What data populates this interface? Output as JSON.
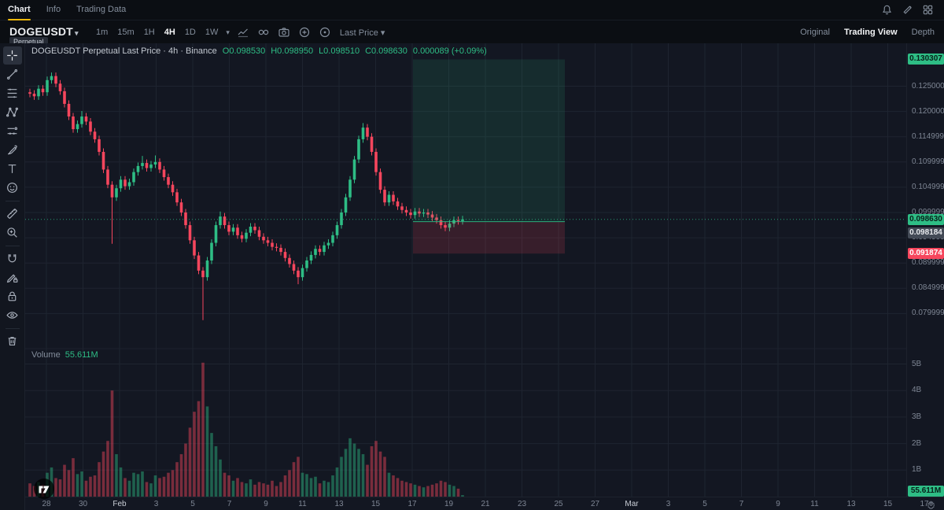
{
  "topbar": {
    "tabs": [
      {
        "label": "Chart",
        "active": true
      },
      {
        "label": "Info",
        "active": false
      },
      {
        "label": "Trading Data",
        "active": false
      }
    ],
    "icons": [
      "bell-icon",
      "marker-icon",
      "grid-icon"
    ]
  },
  "toolbar": {
    "symbol": "DOGEUSDT",
    "symbol_caret": "▾",
    "contract_type": "Perpetual",
    "intervals": [
      "1m",
      "15m",
      "1H",
      "4H",
      "1D",
      "1W"
    ],
    "active_interval": "4H",
    "interval_more_caret": "▾",
    "icons": [
      "chart-style-icon",
      "indicators-icon",
      "camera-icon",
      "add-alert-icon",
      "target-icon"
    ],
    "price_source": "Last Price",
    "price_source_caret": "▾",
    "view_tabs": [
      {
        "label": "Original",
        "active": false
      },
      {
        "label": "Trading View",
        "active": true
      },
      {
        "label": "Depth",
        "active": false
      }
    ]
  },
  "drawing_tools": [
    "crosshair-icon",
    "trendline-icon",
    "fib-retracement-icon",
    "xabcd-pattern-icon",
    "forecast-icon",
    "brush-icon",
    "text-icon",
    "emoji-icon",
    "ruler-icon",
    "zoom-in-icon",
    "magnet-icon",
    "draw-lock-icon",
    "lock-all-icon",
    "hide-all-icon",
    "remove-all-icon"
  ],
  "legend": {
    "series": "DOGEUSDT Perpetual Last Price · 4h · Binance",
    "open": "O0.098530",
    "high": "H0.098950",
    "low": "L0.098510",
    "close": "C0.098630",
    "change": "0.000089 (+0.09%)"
  },
  "volume_legend": {
    "label": "Volume",
    "value": "55.611M"
  },
  "colors": {
    "up": "#2EBD85",
    "down": "#F6465D",
    "accent": "#F0B90B",
    "background": "#131722",
    "grid": "#1E2430",
    "axis_text": "#7E8694",
    "tag_neutral": "#434A56"
  },
  "chart_data": {
    "type": "candlestick",
    "title": "DOGEUSDT Perpetual 4h (Binance)",
    "last_price": 0.09863,
    "price_axis": {
      "labels": [
        {
          "label": "0.125000",
          "value": 0.125
        },
        {
          "label": "0.120000",
          "value": 0.12
        },
        {
          "label": "0.114999",
          "value": 0.115
        },
        {
          "label": "0.109999",
          "value": 0.11
        },
        {
          "label": "0.104999",
          "value": 0.105
        },
        {
          "label": "0.099999",
          "value": 0.1
        },
        {
          "label": "0.094999",
          "value": 0.095
        },
        {
          "label": "0.089999",
          "value": 0.09
        },
        {
          "label": "0.084999",
          "value": 0.085
        },
        {
          "label": "0.079999",
          "value": 0.08
        }
      ]
    },
    "volume_axis": {
      "unit": "B",
      "labels": [
        {
          "label": "5B",
          "value": 5
        },
        {
          "label": "4B",
          "value": 4
        },
        {
          "label": "3B",
          "value": 3
        },
        {
          "label": "2B",
          "value": 2
        },
        {
          "label": "1B",
          "value": 1
        }
      ]
    },
    "time_axis": {
      "labels": [
        "28",
        "30",
        "Feb",
        "3",
        "5",
        "7",
        "9",
        "11",
        "13",
        "15",
        "17",
        "19",
        "21",
        "23",
        "25",
        "27",
        "Mar",
        "3",
        "5",
        "7",
        "9",
        "11",
        "13",
        "15",
        "17"
      ]
    },
    "position_tool": {
      "target": 0.130307,
      "entry": 0.098184,
      "stop": 0.091874
    },
    "tags": [
      {
        "text": "0.130307",
        "style": "up",
        "price": 0.130307,
        "offset": 0
      },
      {
        "text": "0.098630",
        "style": "up",
        "price": 0.09863,
        "offset": 0
      },
      {
        "text": "0.098184",
        "style": "neutral",
        "price": 0.098184,
        "offset": 14
      },
      {
        "text": "0.091874",
        "style": "down",
        "price": 0.091874,
        "offset": 0
      }
    ],
    "volume_tag": {
      "text": "55.611M",
      "style": "up"
    },
    "candles": [
      [
        0.1235,
        0.5
      ],
      [
        0.123,
        0.4
      ],
      [
        0.1245,
        0.55
      ],
      [
        0.1238,
        0.45
      ],
      [
        0.1262,
        0.9
      ],
      [
        0.127,
        1.1,
        0.1277,
        null
      ],
      [
        0.1255,
        0.7
      ],
      [
        0.124,
        0.65
      ],
      [
        0.1215,
        1.2
      ],
      [
        0.119,
        1.0
      ],
      [
        0.1165,
        1.45
      ],
      [
        0.1175,
        0.85
      ],
      [
        0.119,
        0.95,
        0.1201,
        null
      ],
      [
        0.118,
        0.6
      ],
      [
        0.116,
        0.75
      ],
      [
        0.1145,
        0.8
      ],
      [
        0.112,
        1.3
      ],
      [
        0.1085,
        1.7
      ],
      [
        0.1055,
        2.1
      ],
      [
        0.103,
        4.0,
        null,
        0.0938
      ],
      [
        0.1048,
        1.6
      ],
      [
        0.1065,
        1.1
      ],
      [
        0.1052,
        0.7
      ],
      [
        0.106,
        0.6
      ],
      [
        0.108,
        0.9
      ],
      [
        0.1092,
        0.85
      ],
      [
        0.1098,
        0.95,
        0.1112,
        null
      ],
      [
        0.1088,
        0.55
      ],
      [
        0.1095,
        0.5
      ],
      [
        0.11,
        0.8,
        0.1113,
        null
      ],
      [
        0.1085,
        0.7
      ],
      [
        0.107,
        0.75
      ],
      [
        0.1055,
        0.9
      ],
      [
        0.104,
        1.0
      ],
      [
        0.102,
        1.3
      ],
      [
        0.1,
        1.6
      ],
      [
        0.0975,
        2.0
      ],
      [
        0.0945,
        2.6
      ],
      [
        0.0915,
        3.2
      ],
      [
        0.0885,
        3.6
      ],
      [
        0.0872,
        5.05,
        null,
        0.0787
      ],
      [
        0.0905,
        3.4
      ],
      [
        0.094,
        2.4
      ],
      [
        0.0975,
        1.9
      ],
      [
        0.0992,
        1.4,
        0.1002,
        null
      ],
      [
        0.0975,
        0.9
      ],
      [
        0.0962,
        0.8
      ],
      [
        0.097,
        0.6
      ],
      [
        0.0955,
        0.7
      ],
      [
        0.0948,
        0.55
      ],
      [
        0.096,
        0.5
      ],
      [
        0.0972,
        0.65
      ],
      [
        0.0965,
        0.45
      ],
      [
        0.0952,
        0.55
      ],
      [
        0.0945,
        0.5
      ],
      [
        0.094,
        0.45
      ],
      [
        0.0932,
        0.6
      ],
      [
        0.093,
        0.4
      ],
      [
        0.0922,
        0.55
      ],
      [
        0.091,
        0.8
      ],
      [
        0.0898,
        1.0
      ],
      [
        0.0885,
        1.3
      ],
      [
        0.0872,
        1.5,
        null,
        0.0858
      ],
      [
        0.089,
        0.9
      ],
      [
        0.0905,
        0.85
      ],
      [
        0.0916,
        0.7
      ],
      [
        0.0928,
        0.75
      ],
      [
        0.0922,
        0.5
      ],
      [
        0.0935,
        0.6
      ],
      [
        0.094,
        0.55
      ],
      [
        0.0955,
        0.8
      ],
      [
        0.0975,
        1.1
      ],
      [
        0.1,
        1.5
      ],
      [
        0.103,
        1.8
      ],
      [
        0.1065,
        2.2
      ],
      [
        0.1105,
        2.0
      ],
      [
        0.1145,
        1.8
      ],
      [
        0.1168,
        1.6,
        0.1177,
        null
      ],
      [
        0.115,
        1.2
      ],
      [
        0.112,
        1.9
      ],
      [
        0.108,
        2.1
      ],
      [
        0.1045,
        1.7
      ],
      [
        0.102,
        1.5
      ],
      [
        0.1035,
        0.9
      ],
      [
        0.1022,
        0.8
      ],
      [
        0.1012,
        0.7
      ],
      [
        0.1005,
        0.6
      ],
      [
        0.1,
        0.55
      ],
      [
        0.0995,
        0.5
      ],
      [
        0.1002,
        0.45
      ],
      [
        0.0998,
        0.4
      ],
      [
        0.1,
        0.35
      ],
      [
        0.0996,
        0.4
      ],
      [
        0.099,
        0.45
      ],
      [
        0.0985,
        0.5
      ],
      [
        0.0975,
        0.6
      ],
      [
        0.097,
        0.55
      ],
      [
        0.0978,
        0.45
      ],
      [
        0.0985,
        0.4
      ],
      [
        0.0983,
        0.3
      ],
      [
        0.09863,
        0.056
      ]
    ]
  }
}
